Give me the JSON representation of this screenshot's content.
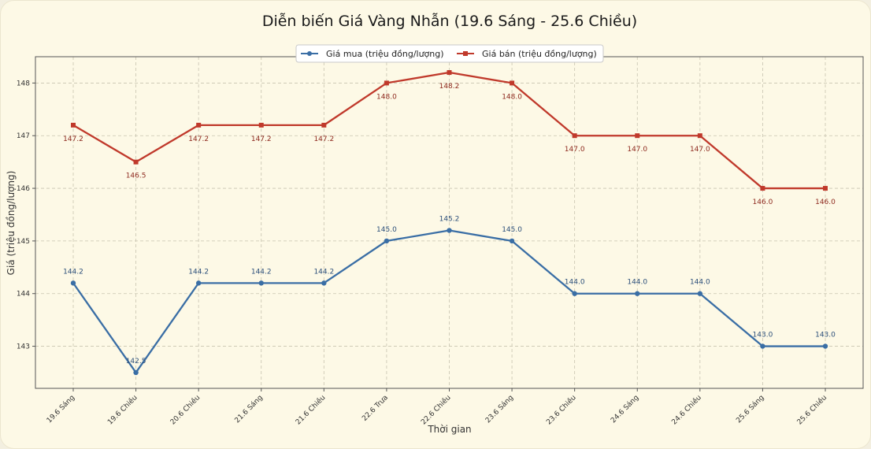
{
  "chart_data": {
    "type": "line",
    "title": "Diễn biến Giá Vàng Nhẫn (19.6 Sáng - 25.6 Chiều)",
    "xlabel": "Thời gian",
    "ylabel": "Giá (triệu đồng/lượng)",
    "categories": [
      "19.6 Sáng",
      "19.6 Chiều",
      "20.6 Chiều",
      "21.6 Sáng",
      "21.6 Chiều",
      "22.6 Trưa",
      "22.6 Chiều",
      "23.6 Sáng",
      "23.6 Chiều",
      "24.6 Sáng",
      "24.6 Chiều",
      "25.6 Sáng",
      "25.6 Chiều"
    ],
    "ylim": [
      142.2,
      148.5
    ],
    "yticks": [
      143,
      144,
      145,
      146,
      147,
      148
    ],
    "grid": true,
    "legend_position": "top-center",
    "series": [
      {
        "name": "Giá mua (triệu đồng/lượng)",
        "color": "#3a6ea5",
        "marker": "circle",
        "values": [
          144.2,
          142.5,
          144.2,
          144.2,
          144.2,
          145.0,
          145.2,
          145.0,
          144.0,
          144.0,
          144.0,
          143.0,
          143.0
        ],
        "labels": [
          "144.2",
          "142.5",
          "144.2",
          "144.2",
          "144.2",
          "145.0",
          "145.2",
          "145.0",
          "144.0",
          "144.0",
          "144.0",
          "143.0",
          "143.0"
        ]
      },
      {
        "name": "Giá bán (triệu đồng/lượng)",
        "color": "#c0392b",
        "marker": "square",
        "values": [
          147.2,
          146.5,
          147.2,
          147.2,
          147.2,
          148.0,
          148.2,
          148.0,
          147.0,
          147.0,
          147.0,
          146.0,
          146.0
        ],
        "labels": [
          "147.2",
          "146.5",
          "147.2",
          "147.2",
          "147.2",
          "148.0",
          "148.2",
          "148.0",
          "147.0",
          "147.0",
          "147.0",
          "146.0",
          "146.0"
        ]
      }
    ]
  }
}
